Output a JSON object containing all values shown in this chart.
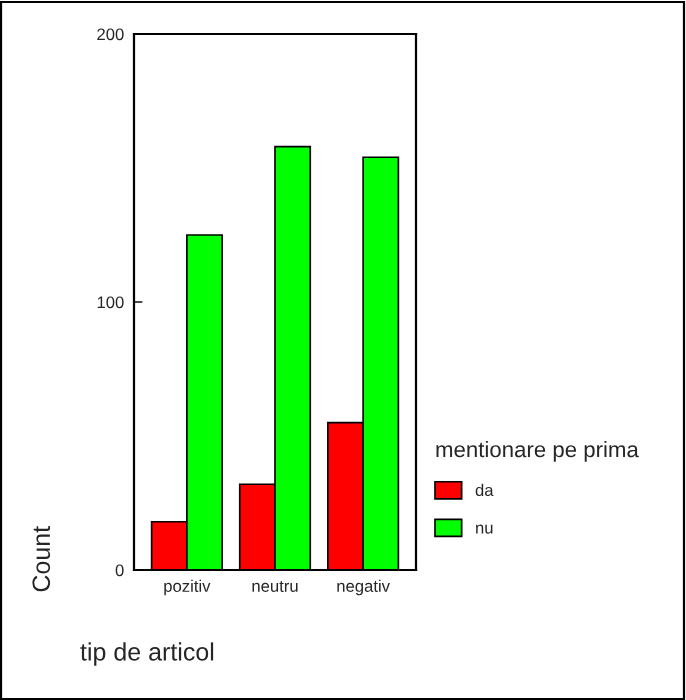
{
  "chart_data": {
    "type": "bar",
    "xlabel": "tip de articol",
    "ylabel": "Count",
    "legend_title": "mentionare pe prima",
    "categories": [
      "pozitiv",
      "neutru",
      "negativ"
    ],
    "series": [
      {
        "name": "da",
        "color": "#ff0000",
        "values": [
          18,
          32,
          55
        ]
      },
      {
        "name": "nu",
        "color": "#00ff00",
        "values": [
          125,
          158,
          154
        ]
      }
    ],
    "ylim": [
      0,
      200
    ],
    "yticks": [
      0,
      100,
      200
    ],
    "grid": false,
    "legend": "right"
  }
}
